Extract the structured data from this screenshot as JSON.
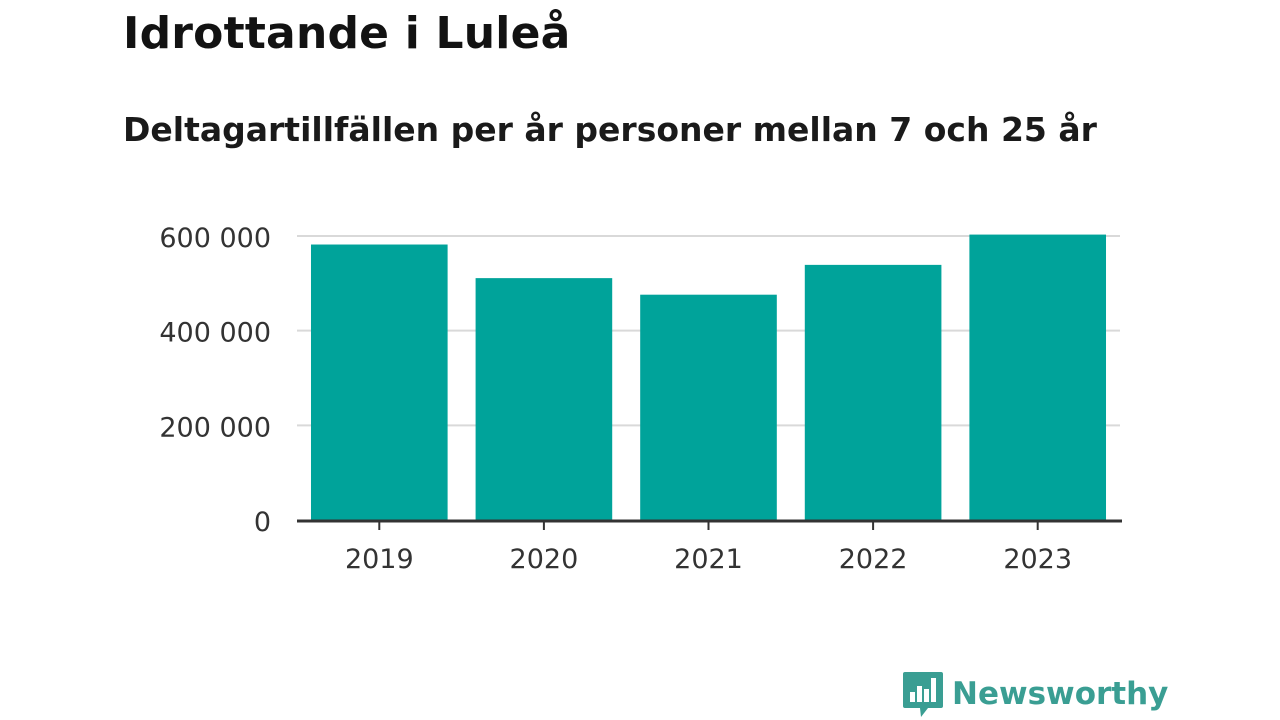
{
  "header": {
    "title": "Idrottande i Luleå",
    "subtitle": "Deltagartillfällen per år personer mellan 7 och 25 år"
  },
  "branding": {
    "name": "Newsworthy",
    "logo_icon": "newsworthy-bars-logo",
    "color": "#3a9e93"
  },
  "colors": {
    "bar": "#00a39a",
    "grid": "#d9d9d9",
    "axis": "#333333",
    "tick_text": "#333333"
  },
  "chart_data": {
    "type": "bar",
    "title": "Idrottande i Luleå",
    "subtitle": "Deltagartillfällen per år personer mellan 7 och 25 år",
    "xlabel": "",
    "ylabel": "",
    "categories": [
      "2019",
      "2020",
      "2021",
      "2022",
      "2023"
    ],
    "values": [
      582000,
      511000,
      476000,
      539000,
      603000
    ],
    "ylim": [
      0,
      600000
    ],
    "yticks": [
      0,
      200000,
      400000,
      600000
    ],
    "ytick_labels": [
      "0",
      "200 000",
      "400 000",
      "600 000"
    ],
    "grid": true,
    "legend": "none"
  }
}
